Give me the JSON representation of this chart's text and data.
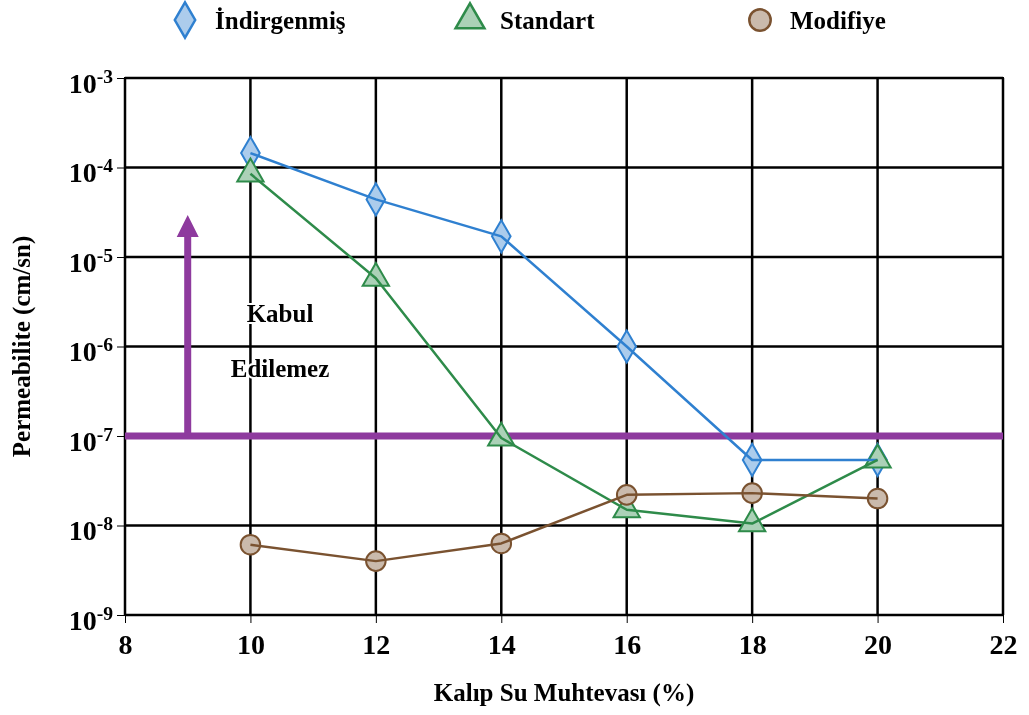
{
  "chart_data": {
    "type": "line",
    "xlabel": "Kalıp Su Muhtevası (%)",
    "ylabel": "Permeabilite (cm/sn)",
    "log": "y",
    "grid": true,
    "legend": "top",
    "xlim": [
      8,
      22
    ],
    "xticks": [
      8,
      10,
      12,
      14,
      16,
      18,
      20,
      22
    ],
    "ylim": [
      1e-09,
      0.001
    ],
    "yticks": [
      {
        "value": 1e-09,
        "label": "10$^{-9}$"
      },
      {
        "value": 1e-08,
        "label": "10$^{-8}$"
      },
      {
        "value": 1e-07,
        "label": "10$^{-7}$"
      },
      {
        "value": 1e-06,
        "label": "10$^{-6}$"
      },
      {
        "value": 1e-05,
        "label": "10$^{-5}$"
      },
      {
        "value": 0.0001,
        "label": "10$^{-4}$"
      },
      {
        "value": 0.001,
        "label": "10$^{-3}$"
      }
    ],
    "x": [
      10,
      12,
      14,
      16,
      18,
      20
    ],
    "series": [
      {
        "name": "İndirgenmiş",
        "color": "#2f80d0",
        "marker": "diamond",
        "values": [
          0.000145,
          4.4e-05,
          1.7e-05,
          1e-06,
          5.4e-08,
          5.4e-08
        ]
      },
      {
        "name": "Standart",
        "color": "#2e8b4a",
        "marker": "triangle",
        "values": [
          8.5e-05,
          5.8e-06,
          9.5e-08,
          1.5e-08,
          1.05e-08,
          5.4e-08
        ]
      },
      {
        "name": "Modifiye",
        "color": "#7a5230",
        "marker": "circle",
        "values": [
          6.1e-09,
          4e-09,
          6.3e-09,
          2.2e-08,
          2.3e-08,
          2e-08
        ]
      }
    ],
    "ref_lines": [
      {
        "axis": "y",
        "value": 1e-07,
        "color": "#8e3a9e"
      }
    ],
    "annotations": [
      "Kabul Edilemez"
    ]
  }
}
